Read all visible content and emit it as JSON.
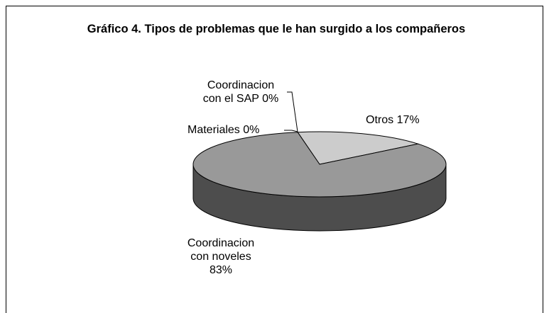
{
  "chart_data": {
    "type": "pie3d",
    "title": "Gráfico 4. Tipos de problemas que le han surgido a los compañeros",
    "categories": [
      "Coordinacion con el SAP",
      "Materiales",
      "Otros",
      "Coordinacion con noveles"
    ],
    "values": [
      0,
      0,
      17,
      83
    ],
    "value_labels": [
      "0%",
      "0%",
      "17%",
      "83%"
    ],
    "colors": [
      "#999999",
      "#999999",
      "#cccccc",
      "#999999"
    ]
  }
}
